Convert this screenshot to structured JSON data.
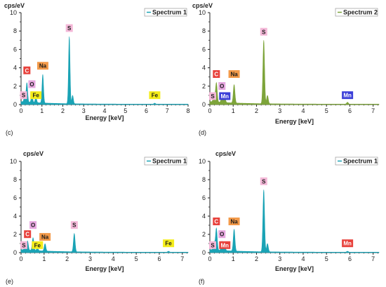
{
  "chart_data": [
    {
      "type": "area",
      "panel_label": "(c)",
      "unit_label": "cps/eV",
      "xlabel": "Energy [keV]",
      "xlim": [
        0,
        8
      ],
      "xticks": [
        0,
        1,
        2,
        3,
        4,
        5,
        6,
        7,
        8
      ],
      "ylim": [
        0,
        10
      ],
      "yticks": [
        0,
        2,
        4,
        6,
        8,
        10
      ],
      "legend": {
        "name": "Spectrum 1",
        "position": "top-right"
      },
      "color": "#1aa3b5",
      "peaks": [
        {
          "x": 0.18,
          "y": 0.8
        },
        {
          "x": 0.28,
          "y": 2.1
        },
        {
          "x": 0.52,
          "y": 0.8
        },
        {
          "x": 0.71,
          "y": 0.6
        },
        {
          "x": 1.04,
          "y": 3.1
        },
        {
          "x": 2.31,
          "y": 7.3
        },
        {
          "x": 2.47,
          "y": 0.9
        },
        {
          "x": 6.4,
          "y": 0.1
        }
      ],
      "element_labels": [
        {
          "text": "C",
          "x": 0.28,
          "y": 3.3,
          "color": "#e8423c"
        },
        {
          "text": "O",
          "x": 0.52,
          "y": 1.8,
          "color": "#e6a6df"
        },
        {
          "text": "Na",
          "x": 1.04,
          "y": 3.8,
          "color": "#f39a4a"
        },
        {
          "text": "S",
          "x": 2.31,
          "y": 7.9,
          "color": "#f4b8d8"
        },
        {
          "text": "S",
          "x": 0.12,
          "y": 0.6,
          "color": "#f4b8d8"
        },
        {
          "text": "Fe",
          "x": 0.71,
          "y": 0.6,
          "color": "#f4ec1a"
        },
        {
          "text": "Fe",
          "x": 6.4,
          "y": 0.6,
          "color": "#f4ec1a"
        }
      ]
    },
    {
      "type": "area",
      "panel_label": "(d)",
      "unit_label": "cps/eV",
      "xlabel": "Energy [keV]",
      "xlim": [
        0,
        7.25
      ],
      "xticks": [
        0,
        1,
        2,
        3,
        4,
        5,
        6,
        7
      ],
      "ylim": [
        0,
        10
      ],
      "yticks": [
        0,
        2,
        4,
        6,
        8,
        10
      ],
      "legend": {
        "name": "Spectrum 2",
        "position": "top-right"
      },
      "color": "#7da43a",
      "peaks": [
        {
          "x": 0.18,
          "y": 0.9
        },
        {
          "x": 0.28,
          "y": 2.1
        },
        {
          "x": 0.52,
          "y": 0.7
        },
        {
          "x": 0.64,
          "y": 0.5
        },
        {
          "x": 1.04,
          "y": 2.0
        },
        {
          "x": 2.31,
          "y": 6.9
        },
        {
          "x": 2.47,
          "y": 0.9
        },
        {
          "x": 5.9,
          "y": 0.2
        }
      ],
      "element_labels": [
        {
          "text": "C",
          "x": 0.28,
          "y": 2.9,
          "color": "#e8423c"
        },
        {
          "text": "O",
          "x": 0.52,
          "y": 1.6,
          "color": "#e6a6df"
        },
        {
          "text": "Na",
          "x": 1.04,
          "y": 2.9,
          "color": "#f39a4a"
        },
        {
          "text": "S",
          "x": 2.31,
          "y": 7.5,
          "color": "#f4b8d8"
        },
        {
          "text": "S",
          "x": 0.12,
          "y": 0.5,
          "color": "#f4b8d8"
        },
        {
          "text": "Mn",
          "x": 0.64,
          "y": 0.5,
          "color": "#3b3fd8"
        },
        {
          "text": "Mn",
          "x": 5.9,
          "y": 0.6,
          "color": "#3b3fd8"
        }
      ]
    },
    {
      "type": "area",
      "panel_label": "(e)",
      "unit_label": "cps/eV",
      "xlabel": "Energy [keV]",
      "xlim": [
        0,
        7.25
      ],
      "xticks": [
        0,
        1,
        2,
        3,
        4,
        5,
        6,
        7
      ],
      "ylim": [
        0,
        10
      ],
      "yticks": [
        0,
        2,
        4,
        6,
        8,
        10
      ],
      "legend": {
        "name": "Spectrum 1",
        "position": "top-right"
      },
      "color": "#1aa3b5",
      "peaks": [
        {
          "x": 0.18,
          "y": 0.5
        },
        {
          "x": 0.28,
          "y": 1.0
        },
        {
          "x": 0.52,
          "y": 1.4
        },
        {
          "x": 0.71,
          "y": 0.3
        },
        {
          "x": 1.04,
          "y": 0.8
        },
        {
          "x": 2.31,
          "y": 2.0
        },
        {
          "x": 6.4,
          "y": 0.1
        }
      ],
      "element_labels": [
        {
          "text": "C",
          "x": 0.28,
          "y": 1.6,
          "color": "#e8423c"
        },
        {
          "text": "O",
          "x": 0.52,
          "y": 2.6,
          "color": "#e6a6df"
        },
        {
          "text": "Na",
          "x": 1.04,
          "y": 1.3,
          "color": "#f39a4a"
        },
        {
          "text": "S",
          "x": 2.31,
          "y": 2.6,
          "color": "#f4b8d8"
        },
        {
          "text": "S",
          "x": 0.12,
          "y": 0.4,
          "color": "#f4b8d8"
        },
        {
          "text": "Fe",
          "x": 0.71,
          "y": 0.4,
          "color": "#f4ec1a"
        },
        {
          "text": "Fe",
          "x": 6.4,
          "y": 0.6,
          "color": "#f4ec1a"
        }
      ]
    },
    {
      "type": "area",
      "panel_label": "(f)",
      "unit_label": "cps/eV",
      "xlabel": "Energy [keV]",
      "xlim": [
        0,
        7.25
      ],
      "xticks": [
        0,
        1,
        2,
        3,
        4,
        5,
        6,
        7
      ],
      "ylim": [
        0,
        10
      ],
      "yticks": [
        0,
        2,
        4,
        6,
        8,
        10
      ],
      "legend": {
        "name": "Spectrum 1",
        "position": "top-right"
      },
      "color": "#1aa3b5",
      "peaks": [
        {
          "x": 0.18,
          "y": 0.9
        },
        {
          "x": 0.28,
          "y": 2.4
        },
        {
          "x": 0.52,
          "y": 1.0
        },
        {
          "x": 0.64,
          "y": 0.4
        },
        {
          "x": 1.04,
          "y": 2.4
        },
        {
          "x": 2.31,
          "y": 6.8
        },
        {
          "x": 2.47,
          "y": 0.9
        },
        {
          "x": 5.9,
          "y": 0.1
        }
      ],
      "element_labels": [
        {
          "text": "C",
          "x": 0.28,
          "y": 3.0,
          "color": "#e8423c"
        },
        {
          "text": "O",
          "x": 0.52,
          "y": 1.6,
          "color": "#e6a6df"
        },
        {
          "text": "Na",
          "x": 1.04,
          "y": 3.0,
          "color": "#f39a4a"
        },
        {
          "text": "S",
          "x": 2.31,
          "y": 7.4,
          "color": "#f4b8d8"
        },
        {
          "text": "S",
          "x": 0.12,
          "y": 0.4,
          "color": "#f4b8d8"
        },
        {
          "text": "Mn",
          "x": 0.64,
          "y": 0.4,
          "color": "#e8423c"
        },
        {
          "text": "Mn",
          "x": 5.9,
          "y": 0.6,
          "color": "#e8423c"
        }
      ]
    }
  ]
}
